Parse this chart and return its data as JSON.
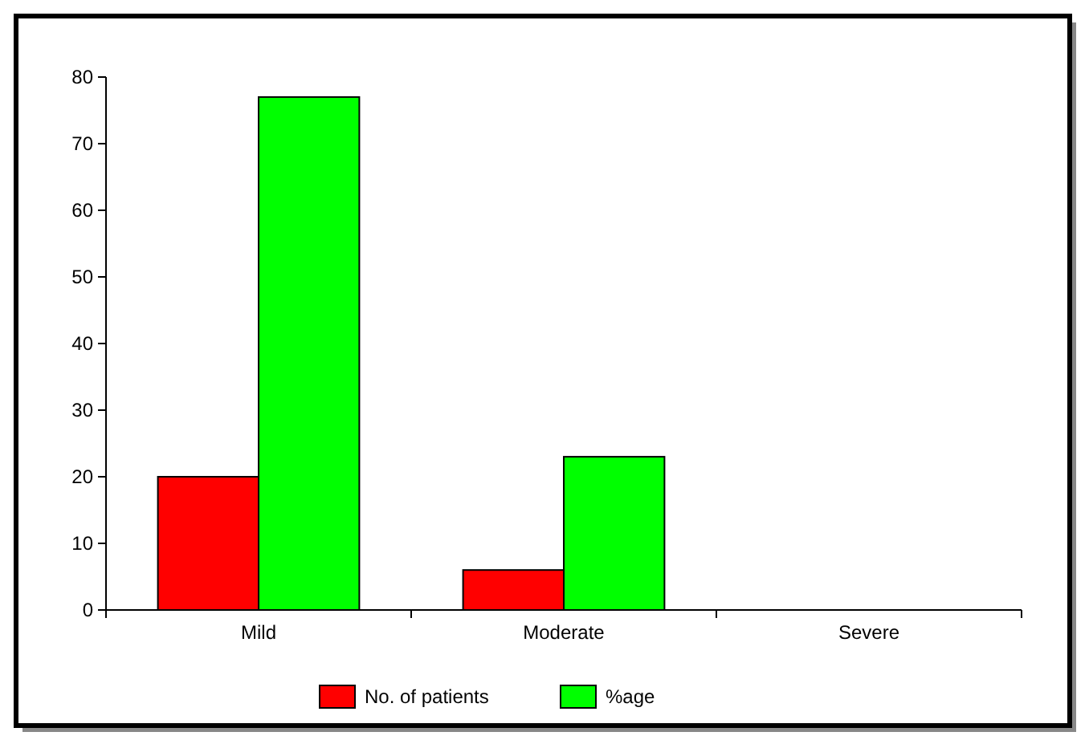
{
  "chart_data": {
    "type": "bar",
    "categories": [
      "Mild",
      "Moderate",
      "Severe"
    ],
    "series": [
      {
        "name": "No. of patients",
        "color": "#ff0000",
        "values": [
          20,
          6,
          0
        ]
      },
      {
        "name": "%age",
        "color": "#00ff00",
        "values": [
          77,
          23,
          0
        ]
      }
    ],
    "ylim": [
      0,
      80
    ],
    "yticks": [
      0,
      10,
      20,
      30,
      40,
      50,
      60,
      70,
      80
    ],
    "grid": false,
    "legend": "bottom"
  }
}
